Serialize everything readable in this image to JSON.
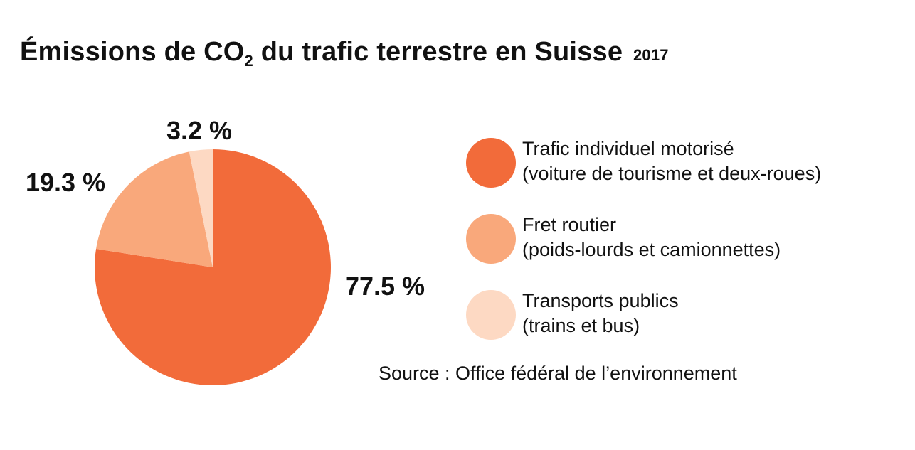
{
  "title": {
    "main": "Émissions de CO",
    "subscript": "2",
    "rest": " du trafic terrestre en Suisse",
    "year": "2017"
  },
  "chart_data": {
    "type": "pie",
    "slices": [
      {
        "line1": "Trafic individuel motorisé",
        "line2": "(voiture de tourisme et deux-roues)",
        "value": 77.5,
        "label": "77.5 %",
        "color": "#f26b3a"
      },
      {
        "line1": "Fret routier",
        "line2": "(poids-lourds et camionnettes)",
        "value": 19.3,
        "label": "19.3 %",
        "color": "#f9a87b"
      },
      {
        "line1": "Transports publics",
        "line2": "(trains et bus)",
        "value": 3.2,
        "label": "3.2 %",
        "color": "#fdd9c3"
      }
    ]
  },
  "source": "Source : Office fédéral de l’environnement"
}
